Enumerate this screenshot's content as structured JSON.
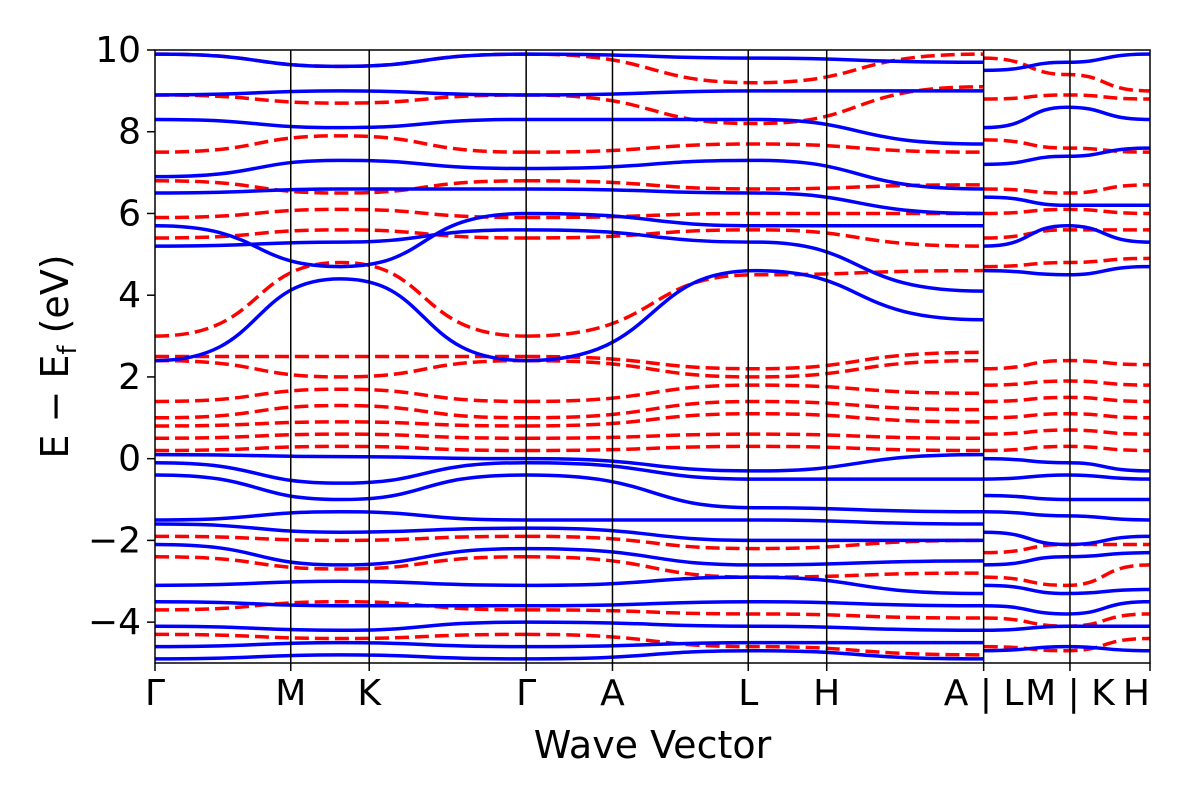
{
  "chart_data": {
    "type": "line",
    "xlabel": "Wave Vector",
    "ylabel": "E − E",
    "ylabel_sub": "f",
    "ylabel_unit": " (eV)",
    "ylim": [
      -5,
      10
    ],
    "yticks": [
      -4,
      -2,
      0,
      2,
      4,
      6,
      8,
      10
    ],
    "ytick_labels": [
      "−4",
      "−2",
      "0",
      "2",
      "4",
      "6",
      "8",
      "10"
    ],
    "xlim": [
      0,
      12.68
    ],
    "kpoints": [
      {
        "label": "Γ",
        "x": 0
      },
      {
        "label": "M",
        "x": 1.73
      },
      {
        "label": "K",
        "x": 2.73
      },
      {
        "label": "Γ",
        "x": 4.73
      },
      {
        "label": "A",
        "x": 5.83
      },
      {
        "label": "L",
        "x": 7.56
      },
      {
        "label": "H",
        "x": 8.56
      },
      {
        "label": "A | L",
        "x": 10.56
      },
      {
        "label": "M | K",
        "x": 11.66
      },
      {
        "label": "H",
        "x": 12.68
      }
    ],
    "series": [
      {
        "style": "solid",
        "color": "#0000ff",
        "segments": [
          {
            "from": 0,
            "to": 4.73,
            "start": [
              2.4,
              5.2,
              5.7,
              6.5,
              6.9,
              8.3,
              8.9,
              9.9,
              0.1,
              -0.1,
              -0.4,
              -1.5,
              -1.6,
              -2.1,
              -3.1,
              -3.5,
              -4.1,
              -4.6,
              -4.9
            ],
            "mid": [
              4.4,
              5.3,
              4.7,
              6.6,
              7.3,
              8.1,
              9.0,
              9.6,
              0.05,
              -0.6,
              -1.0,
              -1.3,
              -1.8,
              -2.6,
              -3.0,
              -3.6,
              -4.2,
              -4.5,
              -4.8
            ],
            "end": [
              2.4,
              5.6,
              6.0,
              6.6,
              7.1,
              8.3,
              8.9,
              9.9,
              0.0,
              -0.1,
              -0.4,
              -1.5,
              -1.7,
              -2.2,
              -3.1,
              -3.6,
              -4.0,
              -4.6,
              -4.9
            ]
          },
          {
            "from": 4.73,
            "to": 10.56,
            "start": [
              2.4,
              5.6,
              6.0,
              6.6,
              7.1,
              8.3,
              8.9,
              9.9,
              0.0,
              -0.1,
              -0.4,
              -1.5,
              -1.7,
              -2.2,
              -3.1,
              -3.6,
              -4.0,
              -4.6,
              -4.9
            ],
            "mid": [
              4.6,
              5.3,
              5.7,
              6.5,
              7.3,
              8.3,
              9.0,
              9.8,
              -0.3,
              -0.5,
              -1.2,
              -1.5,
              -2.0,
              -2.6,
              -2.9,
              -3.5,
              -4.1,
              -4.5,
              -4.7
            ],
            "end": [
              3.4,
              4.1,
              5.7,
              6.0,
              6.6,
              7.7,
              9.0,
              9.7,
              0.1,
              -0.5,
              -1.3,
              -1.6,
              -2.0,
              -2.5,
              -3.3,
              -3.6,
              -4.2,
              -4.5,
              -4.9
            ]
          },
          {
            "from": 10.56,
            "to": 12.68,
            "start": [
              4.6,
              5.2,
              6.4,
              7.2,
              8.1,
              9.5,
              0.0,
              -0.5,
              -0.9,
              -1.3,
              -1.8,
              -2.6,
              -3.1,
              -3.6,
              -4.2,
              -4.7
            ],
            "mid": [
              4.5,
              5.7,
              6.2,
              7.4,
              8.6,
              9.7,
              -0.1,
              -0.4,
              -1.0,
              -1.4,
              -2.1,
              -2.4,
              -3.3,
              -3.8,
              -4.1,
              -4.6
            ],
            "end": [
              4.7,
              5.3,
              6.2,
              7.6,
              8.3,
              9.9,
              -0.3,
              -0.5,
              -1.0,
              -1.5,
              -1.9,
              -2.3,
              -3.2,
              -3.5,
              -4.1,
              -4.7
            ]
          }
        ]
      },
      {
        "style": "dashed",
        "color": "#ff0000",
        "segments": [
          {
            "from": 0,
            "to": 4.73,
            "start": [
              0.2,
              0.5,
              0.8,
              1.0,
              1.4,
              2.4,
              2.5,
              3.0,
              5.4,
              5.9,
              6.8,
              7.5,
              8.9,
              9.9,
              -1.9,
              -2.4,
              -3.7,
              -4.3
            ],
            "mid": [
              0.3,
              0.6,
              0.9,
              1.3,
              1.7,
              2.0,
              2.5,
              4.8,
              5.6,
              6.1,
              6.5,
              7.9,
              8.7,
              9.6,
              -2.0,
              -2.7,
              -3.5,
              -4.4
            ],
            "end": [
              0.2,
              0.5,
              0.8,
              1.0,
              1.4,
              2.4,
              2.5,
              3.0,
              5.4,
              5.9,
              6.8,
              7.5,
              8.9,
              9.9,
              -1.9,
              -2.4,
              -3.7,
              -4.3
            ]
          },
          {
            "from": 4.73,
            "to": 10.56,
            "start": [
              0.2,
              0.5,
              0.8,
              1.0,
              1.4,
              2.4,
              2.5,
              3.0,
              5.4,
              5.9,
              6.8,
              7.5,
              8.9,
              9.9,
              -1.9,
              -2.4,
              -3.7,
              -4.3
            ],
            "mid": [
              0.3,
              0.6,
              1.1,
              1.4,
              1.8,
              2.0,
              2.2,
              4.5,
              5.6,
              6.0,
              6.6,
              7.7,
              8.2,
              9.2,
              -2.2,
              -2.9,
              -3.8,
              -4.6
            ],
            "end": [
              0.2,
              0.5,
              0.9,
              1.2,
              1.6,
              2.4,
              2.6,
              4.6,
              5.2,
              6.0,
              6.7,
              7.5,
              9.1,
              9.9,
              -2.0,
              -2.8,
              -3.9,
              -4.8
            ]
          },
          {
            "from": 10.56,
            "to": 12.68,
            "start": [
              0.2,
              0.6,
              1.0,
              1.4,
              1.8,
              2.2,
              4.7,
              5.4,
              6.0,
              6.6,
              7.8,
              8.8,
              9.8,
              -2.3,
              -2.9,
              -3.9,
              -4.6
            ],
            "mid": [
              0.3,
              0.7,
              1.1,
              1.5,
              1.9,
              2.4,
              4.8,
              5.6,
              6.1,
              6.5,
              7.6,
              8.9,
              9.4,
              -2.1,
              -3.1,
              -4.1,
              -4.7
            ],
            "end": [
              0.2,
              0.6,
              1.0,
              1.4,
              1.8,
              2.3,
              4.9,
              5.6,
              6.0,
              6.7,
              7.5,
              8.8,
              9.0,
              -2.1,
              -2.6,
              -3.8,
              -4.4
            ]
          }
        ]
      }
    ]
  }
}
